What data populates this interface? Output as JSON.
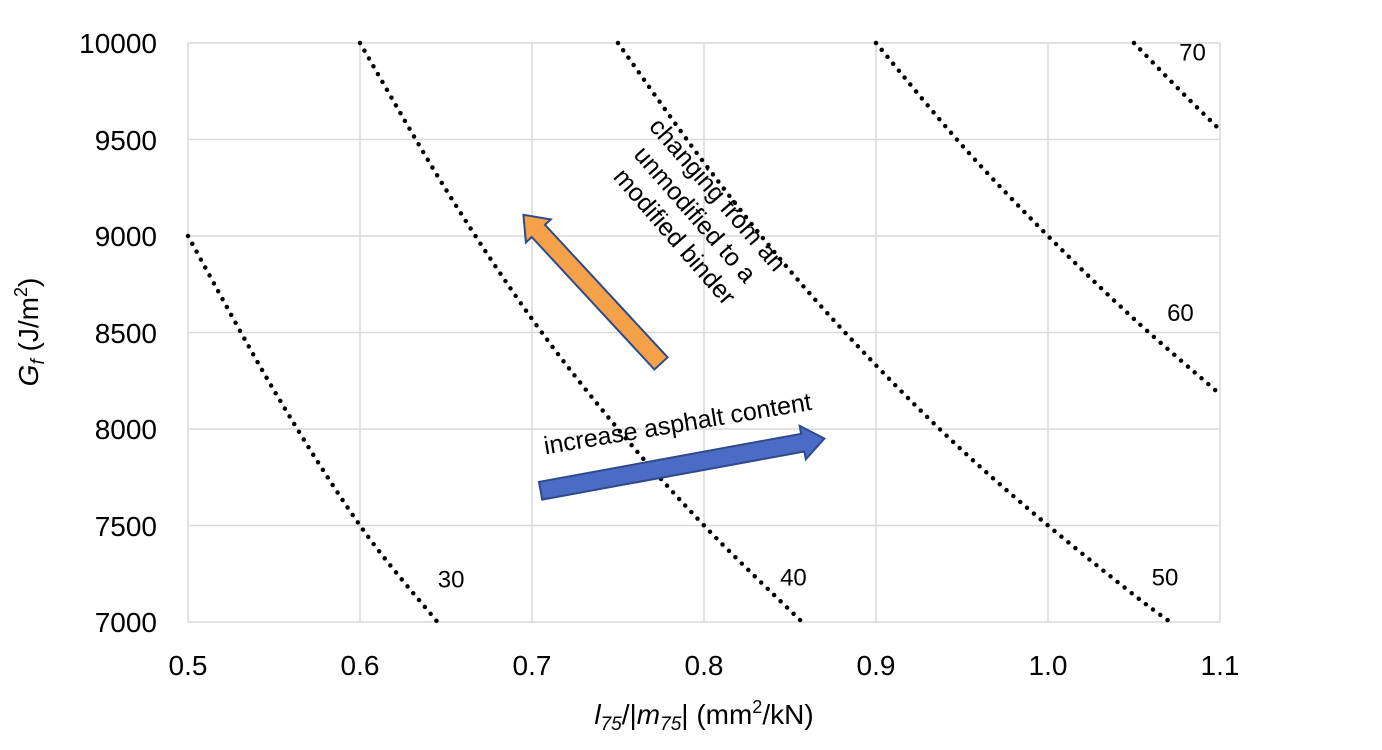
{
  "chart_data": {
    "type": "line",
    "xlabel": "l75/|m75| (mm²/kN)",
    "xlabel_parts": {
      "l": "l",
      "l_sub": "75",
      "mid": "/|",
      "m": "m",
      "m_sub": "75",
      "end": "| (mm",
      "sup": "2",
      "unit_end": "/kN)"
    },
    "ylabel": "Gf (J/m²)",
    "ylabel_parts": {
      "g": "G",
      "g_sub": "f",
      "unit": " (J/m",
      "sup": "2",
      "end": ")"
    },
    "xlim": [
      0.5,
      1.1
    ],
    "ylim": [
      7000,
      10000
    ],
    "x_ticks": [
      "0.5",
      "0.6",
      "0.7",
      "0.8",
      "0.9",
      "1.0",
      "1.1"
    ],
    "y_ticks": [
      "10000",
      "9500",
      "9000",
      "8500",
      "8000",
      "7500",
      "7000"
    ],
    "grid": true,
    "series": [
      {
        "name": "30",
        "x": [
          0.5,
          0.55,
          0.6,
          0.645
        ],
        "y": [
          9000,
          8200,
          7500,
          7000
        ]
      },
      {
        "name": "40",
        "x": [
          0.6,
          0.65,
          0.7,
          0.75,
          0.8,
          0.857
        ],
        "y": [
          10000,
          9240,
          8570,
          8000,
          7500,
          7000
        ]
      },
      {
        "name": "50",
        "x": [
          0.75,
          0.8,
          0.85,
          0.9,
          0.95,
          1.0,
          1.05,
          1.071
        ],
        "y": [
          10000,
          9380,
          8820,
          8330,
          7890,
          7500,
          7140,
          7000
        ]
      },
      {
        "name": "60",
        "x": [
          0.9,
          0.95,
          1.0,
          1.05,
          1.1
        ],
        "y": [
          10000,
          9470,
          9000,
          8570,
          8180
        ]
      },
      {
        "name": "70",
        "x": [
          1.05,
          1.075,
          1.1
        ],
        "y": [
          10000,
          9770,
          9550
        ]
      }
    ],
    "curve_labels": [
      {
        "text": "30",
        "x": 0.653,
        "y": 7180
      },
      {
        "text": "40",
        "x": 0.852,
        "y": 7190
      },
      {
        "text": "50",
        "x": 1.068,
        "y": 7190
      },
      {
        "text": "60",
        "x": 1.077,
        "y": 8560
      },
      {
        "text": "70",
        "x": 1.084,
        "y": 9910
      }
    ],
    "annotations": [
      {
        "lines": [
          "changing  from an",
          "unmodified  to a",
          "modified binder"
        ],
        "arrow_color": "#f4a14a",
        "arrow_from": [
          0.775,
          8340
        ],
        "arrow_to": [
          0.695,
          9110
        ]
      },
      {
        "text": "increase asphalt content",
        "arrow_color": "#4a6cc4",
        "arrow_from": [
          0.705,
          7680
        ],
        "arrow_to": [
          0.87,
          7950
        ]
      }
    ]
  }
}
